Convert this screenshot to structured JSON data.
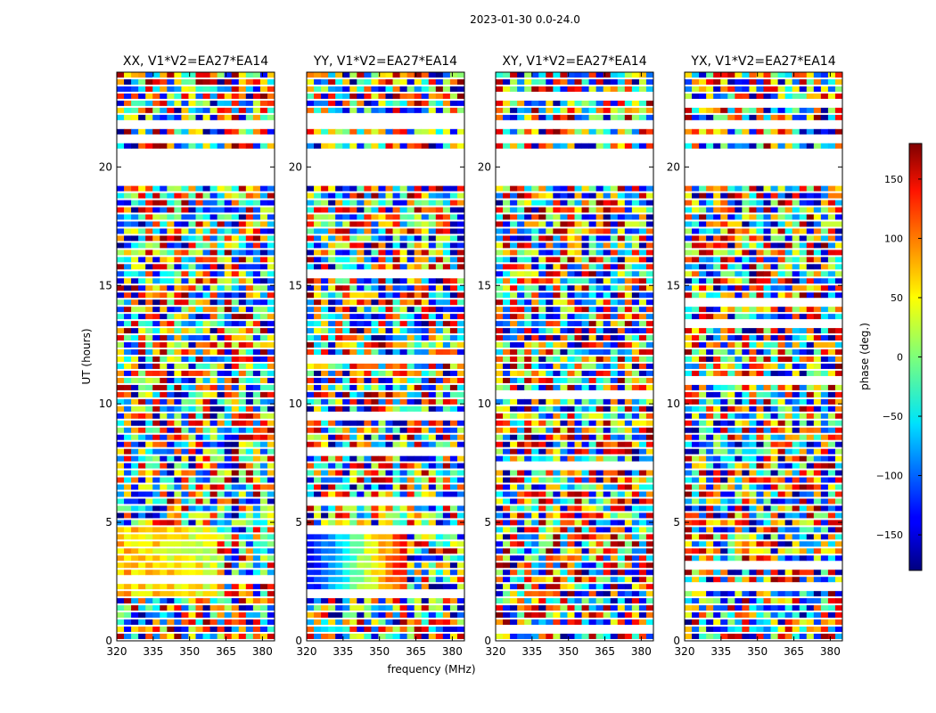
{
  "figure": {
    "suptitle": "2023-01-30 0.0-24.0"
  },
  "chart_data": {
    "type": "heatmap",
    "title": "2023-01-30 0.0-24.0",
    "xlabel": "frequency (MHz)",
    "ylabel": "UT (hours)",
    "xlim": [
      320,
      385
    ],
    "ylim": [
      0,
      24
    ],
    "xticks": [
      320,
      335,
      350,
      365,
      380
    ],
    "yticks": [
      0,
      5,
      10,
      15,
      20
    ],
    "panels": [
      {
        "title": "XX, V1*V2=EA27*EA14",
        "pol": "XX"
      },
      {
        "title": "YY, V1*V2=EA27*EA14",
        "pol": "YY"
      },
      {
        "title": "XY, V1*V2=EA27*EA14",
        "pol": "XY"
      },
      {
        "title": "YX, V1*V2=EA27*EA14",
        "pol": "YX"
      }
    ],
    "colorbar": {
      "label": "phase (deg.)",
      "range": [
        -180,
        180
      ],
      "ticks": [
        -150,
        -100,
        -50,
        0,
        50,
        100,
        150
      ],
      "colormap": "jet"
    },
    "gaps_hours": [
      [
        19.2,
        20.6
      ],
      [
        21.0,
        21.3
      ],
      [
        21.5,
        21.8
      ]
    ]
  }
}
